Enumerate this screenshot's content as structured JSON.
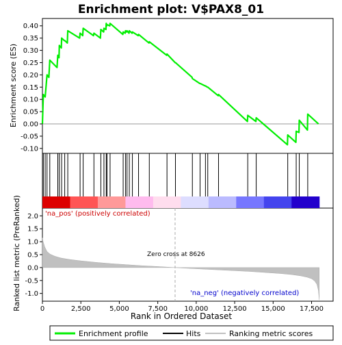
{
  "chart_data": {
    "type": "line",
    "title": "Enrichment plot: V$PAX8_01",
    "xlabel": "Rank in Ordered Dataset",
    "ylabel_top": "Enrichment score (ES)",
    "ylabel_bottom": "Ranked list metric (PreRanked)",
    "x_range": [
      0,
      18000
    ],
    "es_ylim": [
      -0.12,
      0.43
    ],
    "metric_ylim": [
      -1.3,
      2.3
    ],
    "x_ticks": [
      0,
      2500,
      5000,
      7500,
      10000,
      12500,
      15000,
      17500
    ],
    "x_tick_labels": [
      "0",
      "2,500",
      "5,000",
      "7,500",
      "10,000",
      "12,500",
      "15,000",
      "17,500"
    ],
    "es_ticks": [
      -0.1,
      -0.05,
      0.0,
      0.05,
      0.1,
      0.15,
      0.2,
      0.25,
      0.3,
      0.35,
      0.4
    ],
    "es_tick_labels": [
      "-0.10",
      "-0.05",
      "0.00",
      "0.05",
      "0.10",
      "0.15",
      "0.20",
      "0.25",
      "0.30",
      "0.35",
      "0.40"
    ],
    "metric_ticks": [
      -1.0,
      -0.5,
      0.0,
      0.5,
      1.0,
      1.5,
      2.0
    ],
    "metric_tick_labels": [
      "-1.0",
      "-0.5",
      "0.0",
      "0.5",
      "1.0",
      "1.5",
      "2.0"
    ],
    "hits": [
      60,
      180,
      300,
      480,
      1000,
      1100,
      1250,
      1450,
      1650,
      2450,
      2650,
      3350,
      3800,
      4000,
      4150,
      4200,
      4400,
      5250,
      5400,
      5500,
      5650,
      5850,
      6250,
      6950,
      8100,
      8650,
      9750,
      10250,
      10600,
      10750,
      11450,
      13350,
      13900,
      15950,
      16500,
      16700,
      17250
    ],
    "es_points": [
      [
        0,
        0.0
      ],
      [
        60,
        0.12
      ],
      [
        180,
        0.11
      ],
      [
        300,
        0.2
      ],
      [
        420,
        0.19
      ],
      [
        480,
        0.26
      ],
      [
        950,
        0.23
      ],
      [
        1000,
        0.28
      ],
      [
        1080,
        0.27
      ],
      [
        1100,
        0.32
      ],
      [
        1230,
        0.31
      ],
      [
        1250,
        0.35
      ],
      [
        1420,
        0.34
      ],
      [
        1450,
        0.34
      ],
      [
        1620,
        0.33
      ],
      [
        1650,
        0.38
      ],
      [
        2420,
        0.35
      ],
      [
        2450,
        0.37
      ],
      [
        2620,
        0.36
      ],
      [
        2650,
        0.39
      ],
      [
        3320,
        0.36
      ],
      [
        3350,
        0.37
      ],
      [
        3770,
        0.35
      ],
      [
        3800,
        0.385
      ],
      [
        3980,
        0.375
      ],
      [
        4000,
        0.39
      ],
      [
        4130,
        0.385
      ],
      [
        4150,
        0.41
      ],
      [
        4180,
        0.4
      ],
      [
        4200,
        0.405
      ],
      [
        4380,
        0.4
      ],
      [
        4400,
        0.41
      ],
      [
        5230,
        0.365
      ],
      [
        5250,
        0.375
      ],
      [
        5380,
        0.37
      ],
      [
        5400,
        0.38
      ],
      [
        5480,
        0.375
      ],
      [
        5500,
        0.38
      ],
      [
        5630,
        0.37
      ],
      [
        5650,
        0.38
      ],
      [
        5830,
        0.37
      ],
      [
        5850,
        0.375
      ],
      [
        6230,
        0.36
      ],
      [
        6250,
        0.365
      ],
      [
        6930,
        0.33
      ],
      [
        6950,
        0.335
      ],
      [
        8080,
        0.28
      ],
      [
        8100,
        0.285
      ],
      [
        8630,
        0.25
      ],
      [
        8650,
        0.25
      ],
      [
        9730,
        0.19
      ],
      [
        9750,
        0.185
      ],
      [
        10230,
        0.165
      ],
      [
        10250,
        0.165
      ],
      [
        10580,
        0.155
      ],
      [
        10600,
        0.155
      ],
      [
        10730,
        0.15
      ],
      [
        10750,
        0.15
      ],
      [
        11430,
        0.115
      ],
      [
        11450,
        0.12
      ],
      [
        13330,
        0.01
      ],
      [
        13350,
        0.035
      ],
      [
        13880,
        0.01
      ],
      [
        13900,
        0.025
      ],
      [
        15930,
        -0.085
      ],
      [
        15950,
        -0.045
      ],
      [
        16480,
        -0.075
      ],
      [
        16500,
        -0.03
      ],
      [
        16680,
        -0.035
      ],
      [
        16700,
        0.015
      ],
      [
        17230,
        -0.025
      ],
      [
        17250,
        0.04
      ],
      [
        17950,
        0.0
      ]
    ],
    "metric_points": [
      [
        0,
        1.15
      ],
      [
        50,
        1.0
      ],
      [
        150,
        0.8
      ],
      [
        300,
        0.62
      ],
      [
        500,
        0.52
      ],
      [
        800,
        0.44
      ],
      [
        1200,
        0.37
      ],
      [
        1800,
        0.31
      ],
      [
        2500,
        0.26
      ],
      [
        3500,
        0.2
      ],
      [
        4500,
        0.15
      ],
      [
        5500,
        0.11
      ],
      [
        6500,
        0.07
      ],
      [
        7500,
        0.04
      ],
      [
        8626,
        0.0
      ],
      [
        9500,
        -0.03
      ],
      [
        10500,
        -0.06
      ],
      [
        11500,
        -0.09
      ],
      [
        12500,
        -0.12
      ],
      [
        13500,
        -0.15
      ],
      [
        14500,
        -0.19
      ],
      [
        15500,
        -0.23
      ],
      [
        16200,
        -0.27
      ],
      [
        16800,
        -0.32
      ],
      [
        17200,
        -0.37
      ],
      [
        17500,
        -0.43
      ],
      [
        17700,
        -0.52
      ],
      [
        17850,
        -0.65
      ],
      [
        17950,
        -0.9
      ],
      [
        18000,
        -1.25
      ]
    ],
    "zero_cross_rank": 8626,
    "zero_cross_label": "Zero cross at 8626",
    "pos_label": "'na_pos' (positively correlated)",
    "neg_label": "'na_neg' (negatively correlated)",
    "legend": [
      "Enrichment profile",
      "Hits",
      "Ranking metric scores"
    ],
    "colors": {
      "es_line": "#00ee00",
      "hits": "#000000",
      "metric_fill": "#c0c0c0",
      "pos_text": "#cc0000",
      "neg_text": "#0000cc",
      "heat_bands": [
        "#dd0000",
        "#ff5555",
        "#ff9999",
        "#ffbbee",
        "#ffddee",
        "#ddddff",
        "#bbbbff",
        "#7777ff",
        "#4444ee",
        "#2200cc"
      ]
    }
  }
}
